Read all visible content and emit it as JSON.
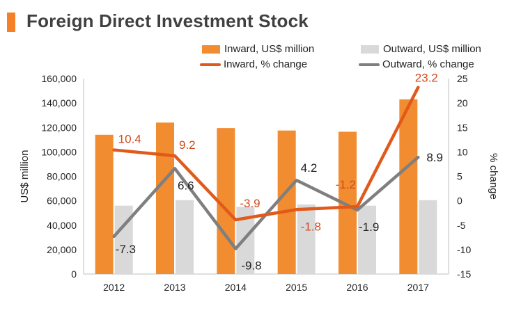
{
  "title": "Foreign Direct Investment Stock",
  "colors": {
    "accent": "#f58025",
    "inward_bar": "#f28c30",
    "outward_bar": "#d9d9d9",
    "inward_line": "#e05a1b",
    "outward_line": "#7f7f7f",
    "inward_label": "#d04a1e",
    "outward_label": "#222222"
  },
  "legend": {
    "inward_bar": "Inward, US$ million",
    "outward_bar": "Outward, US$ million",
    "inward_line": "Inward, % change",
    "outward_line": "Outward, % change"
  },
  "chart_data": {
    "type": "bar+line",
    "categories": [
      "2012",
      "2013",
      "2014",
      "2015",
      "2016",
      "2017"
    ],
    "series": [
      {
        "name": "Inward, US$ million",
        "kind": "bar",
        "axis": "left",
        "values": [
          114000,
          124000,
          119500,
          117500,
          116500,
          143000
        ]
      },
      {
        "name": "Outward, US$ million",
        "kind": "bar",
        "axis": "left",
        "values": [
          56000,
          60500,
          55000,
          57000,
          56000,
          60500
        ]
      },
      {
        "name": "Inward, % change",
        "kind": "line",
        "axis": "right",
        "values": [
          10.4,
          9.2,
          -3.9,
          -1.8,
          -1.2,
          23.2
        ]
      },
      {
        "name": "Outward, % change",
        "kind": "line",
        "axis": "right",
        "values": [
          -7.3,
          6.6,
          -9.8,
          4.2,
          -1.9,
          8.9
        ]
      }
    ],
    "data_labels": {
      "inward_pct": [
        "10.4",
        "9.2",
        "-3.9",
        "-1.8",
        "-1.2",
        "23.2"
      ],
      "outward_pct": [
        "-7.3",
        "6.6",
        "-9.8",
        "4.2",
        "-1.9",
        "8.9"
      ]
    },
    "ylabel": "US$ million",
    "y2label": "% change",
    "ylim": [
      0,
      160000
    ],
    "y2lim": [
      -15,
      25
    ],
    "yticks": [
      "0",
      "20,000",
      "40,000",
      "60,000",
      "80,000",
      "100,000",
      "120,000",
      "140,000",
      "160,000"
    ],
    "y2ticks": [
      "-15",
      "-10",
      "-5",
      "0",
      "5",
      "10",
      "15",
      "20",
      "25"
    ],
    "grid": false,
    "legend_position": "top"
  }
}
